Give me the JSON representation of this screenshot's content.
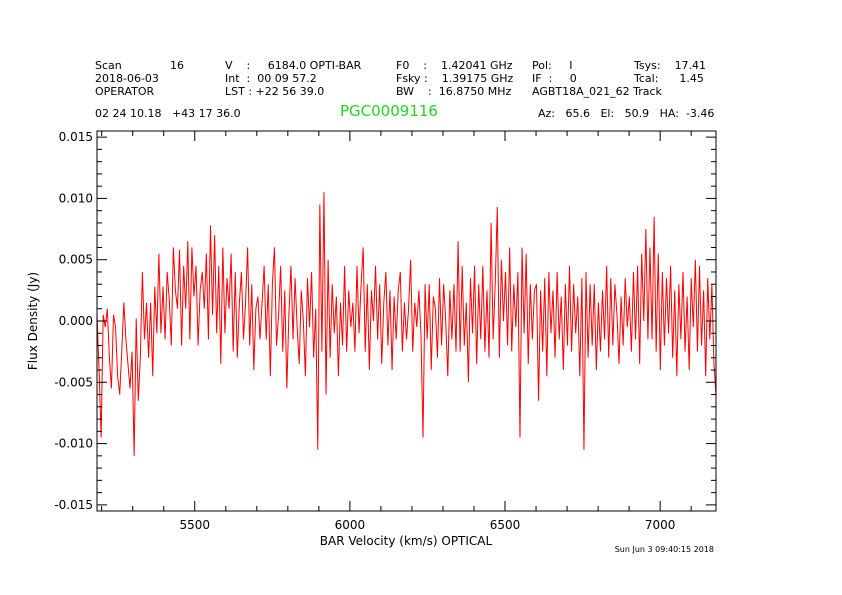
{
  "header": {
    "col1": {
      "scan_label": "Scan",
      "scan_value": "16",
      "date": "2018-06-03",
      "observer": "OPERATOR"
    },
    "col2": {
      "v_line": "V    :     6184.0 OPTI-BAR",
      "int_line": "Int  :  00 09 57.2",
      "lst_line": "LST : +22 56 39.0"
    },
    "col3": {
      "f0_line": "F0    :    1.42041 GHz",
      "fsky_line": "Fsky :    1.39175 GHz",
      "bw_line": "BW    :  16.8750 MHz"
    },
    "col4": {
      "pol_line": "Pol:     I",
      "if_line": "IF  :     0",
      "project_line": "AGBT18A_021_62 Track"
    },
    "col5": {
      "tsys_line": "Tsys:    17.41",
      "tcal_line": "Tcal:      1.45"
    },
    "coords": "02 24 10.18   +43 17 36.0",
    "source": "PGC0009116",
    "azel": "Az:   65.6   El:   50.9   HA:  -3.46",
    "timestamp": "Sun Jun  3 09:40:15 2018"
  },
  "colors": {
    "series": "#ff0000",
    "title": "#22d422",
    "axes": "#000000"
  },
  "chart_data": {
    "type": "line",
    "title": "PGC0009116",
    "xlabel": "BAR Velocity (km/s) OPTICAL",
    "ylabel": "Flux Density (Jy)",
    "xlim": [
      5185,
      7180
    ],
    "ylim": [
      -0.0155,
      0.0155
    ],
    "xticks": [
      5500,
      6000,
      6500,
      7000
    ],
    "xtick_labels": [
      "5500",
      "6000",
      "6500",
      "7000"
    ],
    "yticks": [
      -0.015,
      -0.01,
      -0.005,
      0.0,
      0.005,
      0.01,
      0.015
    ],
    "ytick_labels": [
      "-0.015",
      "-0.010",
      "-0.005",
      "0.000",
      "0.005",
      "0.010",
      "0.015"
    ],
    "grid": false,
    "series": [
      {
        "name": "spectrum",
        "x_start": 5185,
        "x_step": 6.65,
        "values": [
          0.0005,
          -0.004,
          -0.0095,
          0.0005,
          -0.0005,
          0.001,
          -0.003,
          -0.0055,
          0.0005,
          -0.0005,
          -0.0045,
          -0.006,
          -0.0025,
          0.0015,
          -0.0015,
          -0.0035,
          -0.0055,
          -0.0025,
          -0.011,
          0.0002,
          -0.0065,
          -0.003,
          0.004,
          -0.0015,
          0.0015,
          -0.003,
          0.0015,
          -0.0045,
          0.0028,
          -0.001,
          0.0055,
          -0.001,
          0.0028,
          -0.0015,
          0.004,
          0.0018,
          -0.002,
          0.006,
          0.0025,
          0.001,
          0.0058,
          -0.002,
          0.0045,
          0.001,
          0.0065,
          -0.0015,
          0.006,
          0.002,
          0.0045,
          -0.002,
          0.0025,
          0.004,
          0.001,
          0.0055,
          -0.0015,
          0.0078,
          0.0005,
          0.007,
          -0.001,
          0.0045,
          -0.0035,
          0.006,
          -0.001,
          0.0035,
          0.001,
          0.0055,
          -0.0025,
          0.004,
          -0.003,
          0.0015,
          0.004,
          -0.0015,
          0.0015,
          0.006,
          -0.002,
          0.003,
          -0.004,
          0.001,
          0.002,
          -0.0015,
          0.0015,
          0.0045,
          -0.0015,
          0.003,
          -0.0045,
          0.003,
          0.006,
          -0.002,
          0.0005,
          0.0045,
          -0.0025,
          0.0025,
          -0.0055,
          0.0005,
          0.0045,
          -0.0015,
          0.0035,
          -0.0005,
          -0.0035,
          0.0025,
          0.0,
          -0.0045,
          0.0035,
          -0.0005,
          0.004,
          -0.003,
          0.001,
          -0.0105,
          0.0095,
          -0.0025,
          0.0105,
          -0.006,
          0.005,
          -0.003,
          0.003,
          -0.001,
          0.002,
          -0.0045,
          0.0015,
          -0.002,
          0.0045,
          -0.0025,
          0.0025,
          -0.0005,
          0.0015,
          -0.0025,
          0.0045,
          -0.001,
          0.003,
          0.006,
          -0.0025,
          0.003,
          -0.004,
          0.0025,
          0.0,
          0.0045,
          -0.0015,
          0.003,
          -0.0035,
          0.0015,
          0.004,
          -0.002,
          0.0025,
          -0.004,
          0.002,
          -0.0015,
          0.0025,
          0.004,
          -0.0025,
          0.0015,
          -0.0015,
          0.001,
          0.005,
          -0.0025,
          0.0015,
          -0.0005,
          0.0025,
          -0.001,
          -0.0095,
          0.003,
          -0.0015,
          0.003,
          -0.004,
          0.002,
          0.001,
          -0.003,
          0.0035,
          -0.002,
          0.003,
          0.0,
          -0.0045,
          0.0025,
          -0.0015,
          0.003,
          -0.0025,
          0.0065,
          -0.0025,
          0.0045,
          -0.002,
          0.0015,
          -0.005,
          0.0035,
          -0.001,
          0.0045,
          -0.0035,
          0.003,
          -0.0015,
          0.0045,
          -0.0025,
          0.0025,
          -0.003,
          0.008,
          -0.0015,
          0.003,
          0.0093,
          -0.003,
          0.005,
          0.0,
          0.004,
          -0.002,
          0.006,
          -0.0025,
          0.003,
          -0.0005,
          0.004,
          -0.0095,
          0.006,
          -0.001,
          0.0055,
          -0.0035,
          0.003,
          -0.0015,
          0.0025,
          0.003,
          -0.0065,
          0.0025,
          -0.0025,
          0.0035,
          -0.0045,
          0.004,
          -0.001,
          0.0025,
          -0.003,
          0.004,
          -0.0015,
          0.002,
          -0.004,
          0.003,
          -0.002,
          0.0045,
          -0.0025,
          0.003,
          -0.001,
          0.002,
          -0.0045,
          0.0035,
          -0.0105,
          0.004,
          -0.003,
          0.003,
          -0.002,
          0.003,
          -0.004,
          0.0015,
          -0.0025,
          0.0025,
          -0.0015,
          0.0045,
          -0.003,
          0.0035,
          -0.002,
          0.003,
          0.0005,
          -0.0035,
          0.002,
          -0.002,
          0.0035,
          -0.0005,
          0.002,
          -0.0025,
          0.004,
          -0.0015,
          0.0045,
          -0.0035,
          0.0055,
          0.0,
          0.0075,
          -0.0015,
          0.006,
          -0.0015,
          0.0085,
          -0.0025,
          0.0055,
          -0.004,
          0.004,
          -0.002,
          0.0035,
          -0.001,
          0.0045,
          -0.003,
          0.0025,
          -0.0045,
          0.003,
          -0.0015,
          0.004,
          -0.0025,
          0.002,
          -0.004,
          0.0035,
          -0.0005,
          0.005,
          -0.0025,
          0.0045,
          -0.002,
          0.0025,
          -0.0045,
          0.0035,
          -0.0015,
          0.003,
          -0.0035,
          -0.006
        ]
      }
    ]
  }
}
